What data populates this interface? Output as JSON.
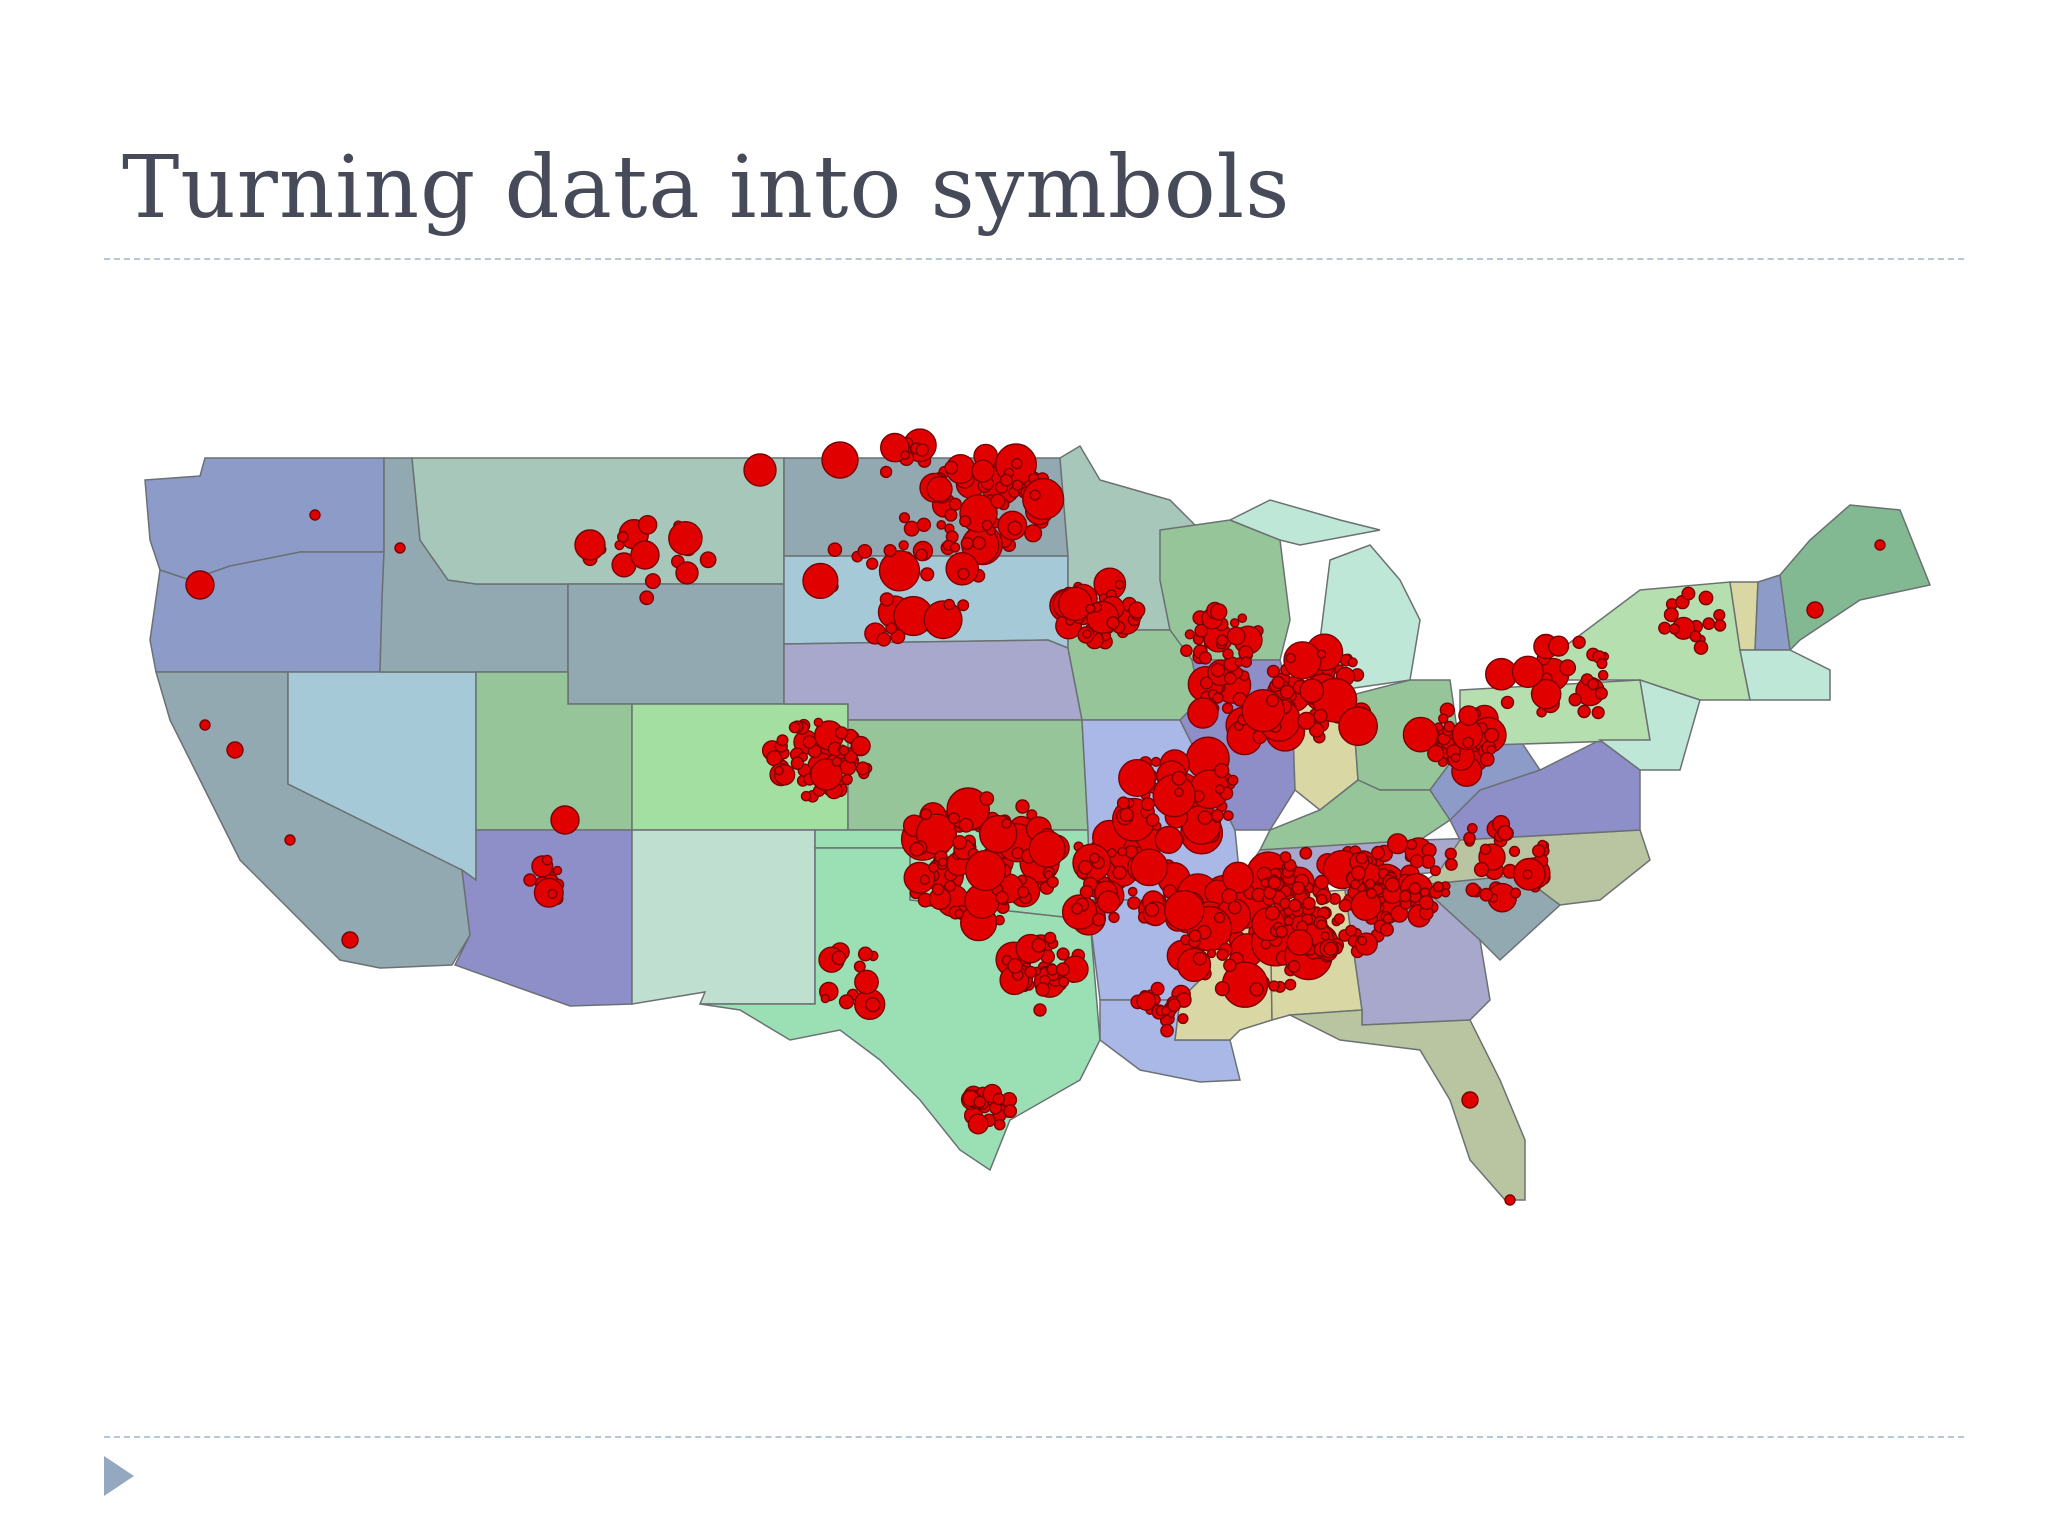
{
  "slide": {
    "title": "Turning data into symbols"
  },
  "map": {
    "symbol_color": "#e10000",
    "symbol_outline": "#7a0000",
    "border_color": "#6b7172",
    "nav_arrow_color": "#94a9c0",
    "state_colors": {
      "pacific_northwest": "#8d9bc8",
      "northern_plains": "#a7c7ba",
      "great_basin": "#a6c9d8",
      "southwest_desert": "#8e8ec8",
      "rockies": "#93a9b2",
      "colorado": "#a3dfa0",
      "new_mexico": "#bfe0d0",
      "texas": "#9be0b4",
      "midwest": "#96c59a",
      "mississippi_valley": "#aab8e8",
      "ohio_valley": "#d9d8a4",
      "southeast": "#a8a8cc",
      "florida": "#b9c4a0",
      "northeast": "#b6dfb0",
      "maine": "#82b892",
      "great_lakes": "#bfe7d8"
    }
  }
}
